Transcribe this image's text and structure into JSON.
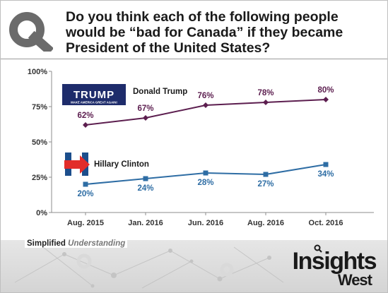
{
  "header": {
    "title": "Do you think each of the following people would be “bad for Canada” if they became President of the United States?"
  },
  "logos": {
    "trump_text": "TRUMP",
    "trump_slogan": "MAKE AMERICA GREAT AGAIN!"
  },
  "footer": {
    "tagline_bold": "Simplified",
    "tagline_italic": "Understanding",
    "brand_line1": "Insights",
    "brand_line2": "West"
  },
  "chart_data": {
    "type": "line",
    "categories": [
      "Aug. 2015",
      "Jan. 2016",
      "Jun. 2016",
      "Aug. 2016",
      "Oct. 2016"
    ],
    "y_ticks": [
      "0%",
      "25%",
      "50%",
      "75%",
      "100%"
    ],
    "ylim": [
      0,
      100
    ],
    "grid": false,
    "series": [
      {
        "name": "Donald Trump",
        "values": [
          62,
          67,
          76,
          78,
          80
        ],
        "labels": [
          "62%",
          "67%",
          "76%",
          "78%",
          "80%"
        ],
        "color": "#5c1e4f",
        "marker": "diamond"
      },
      {
        "name": "Hillary Clinton",
        "values": [
          20,
          24,
          28,
          27,
          34
        ],
        "labels": [
          "20%",
          "24%",
          "28%",
          "27%",
          "34%"
        ],
        "color": "#2e6da4",
        "marker": "square"
      }
    ]
  }
}
